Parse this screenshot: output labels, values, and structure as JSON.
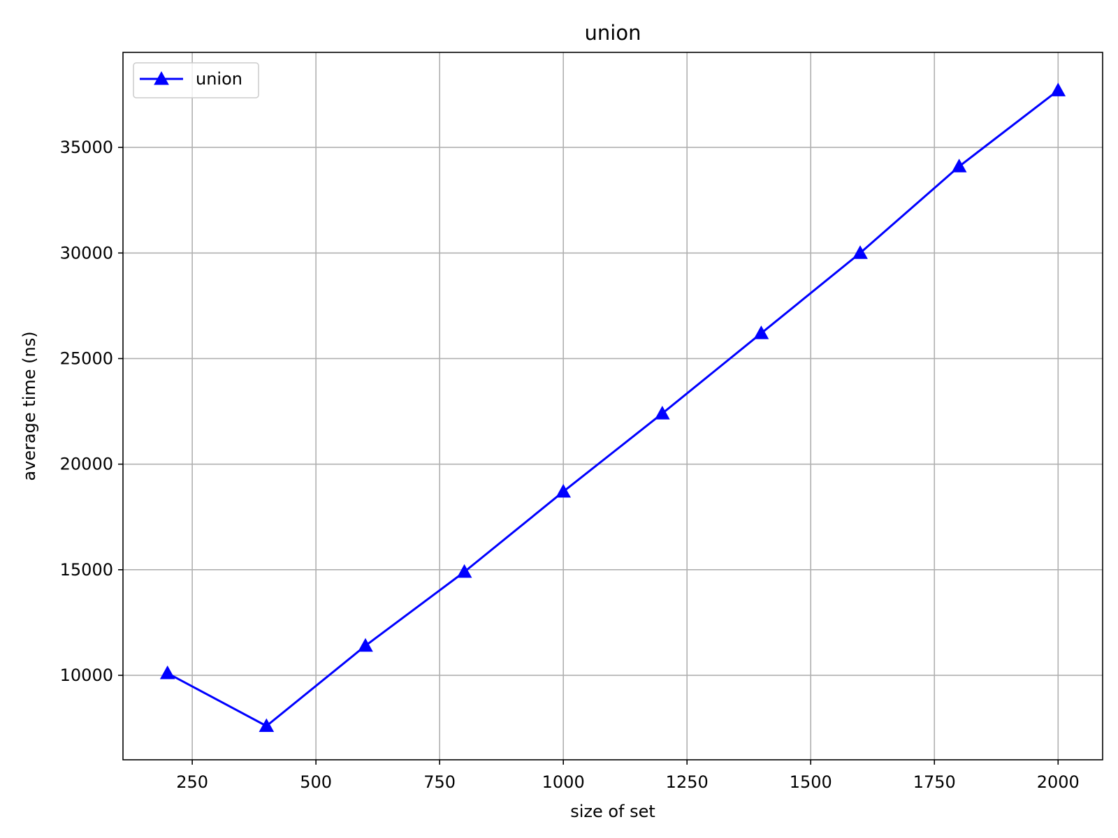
{
  "chart_data": {
    "type": "line",
    "title": "union",
    "xlabel": "size of set",
    "ylabel": "average time (ns)",
    "xlim": [
      110,
      2090
    ],
    "ylim": [
      6000,
      39500
    ],
    "x_ticks": [
      250,
      500,
      750,
      1000,
      1250,
      1500,
      1750,
      2000
    ],
    "y_ticks": [
      10000,
      15000,
      20000,
      25000,
      30000,
      35000
    ],
    "grid": true,
    "legend_position": "upper left",
    "series": [
      {
        "name": "union",
        "color": "#0000ff",
        "marker": "triangle-up",
        "x": [
          200,
          400,
          600,
          800,
          1000,
          1200,
          1400,
          1600,
          1800,
          2000
        ],
        "y": [
          10100,
          7600,
          11400,
          14900,
          18700,
          22400,
          26200,
          30000,
          34100,
          37700
        ]
      }
    ]
  }
}
